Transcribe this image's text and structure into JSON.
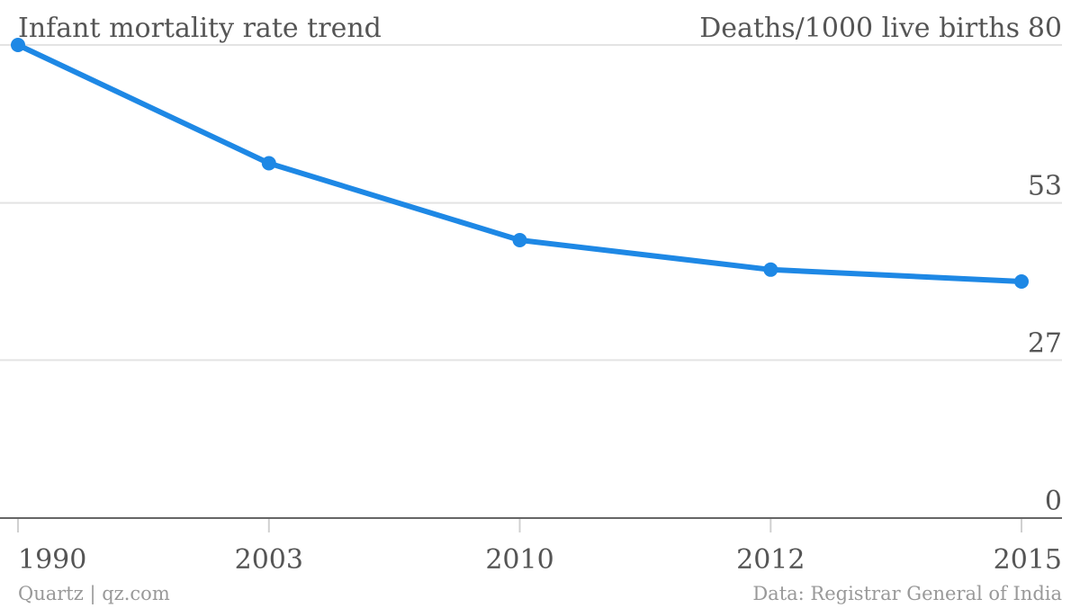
{
  "chart_data": {
    "type": "line",
    "title": "Infant mortality rate trend",
    "ylabel": "Deaths/1000 live births",
    "x": [
      "1990",
      "2003",
      "2010",
      "2012",
      "2015"
    ],
    "series": [
      {
        "values": [
          80,
          60,
          47,
          42,
          40
        ]
      }
    ],
    "ylim": [
      0,
      80
    ],
    "yticks": [
      "80",
      "53",
      "27",
      "0"
    ],
    "ytick_values": [
      80,
      53.3,
      26.7,
      0
    ],
    "grid": true,
    "line_color": "#1e88e5"
  },
  "footer": {
    "source_left": "Quartz | qz.com",
    "source_right": "Data: Registrar General of India"
  }
}
